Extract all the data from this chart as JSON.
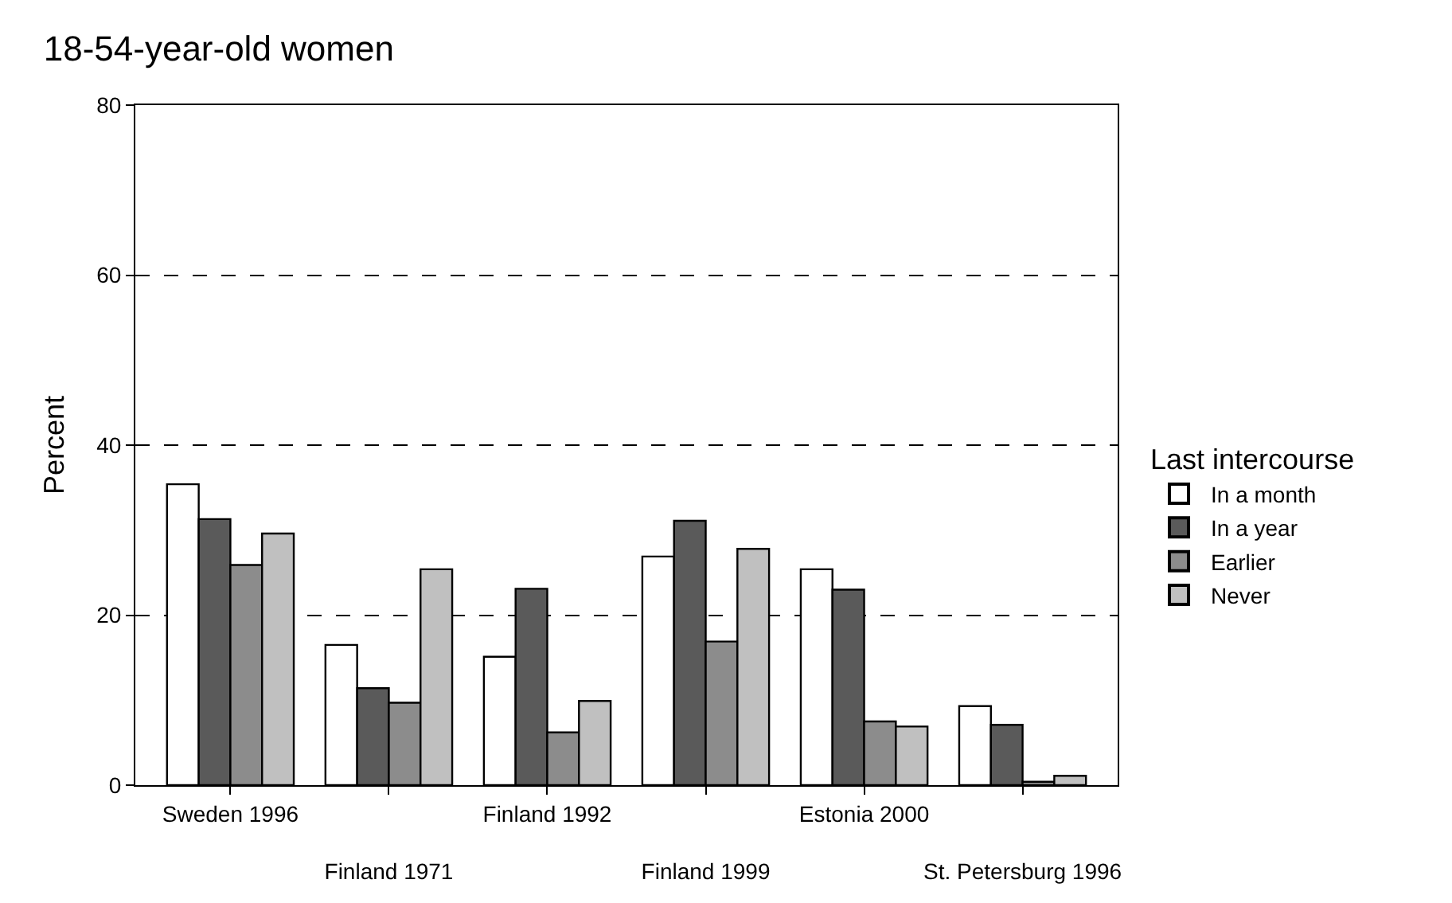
{
  "chart_data": {
    "type": "bar",
    "title": "18-54-year-old women",
    "ylabel": "Percent",
    "legend_title": "Last intercourse",
    "categories": [
      "Sweden 1996",
      "Finland 1971",
      "Finland 1992",
      "Finland 1999",
      "Estonia 2000",
      "St. Petersburg 1996"
    ],
    "series": [
      {
        "name": "In a month",
        "color": "#ffffff",
        "values": [
          35.4,
          16.5,
          15.1,
          26.9,
          25.4,
          9.3
        ]
      },
      {
        "name": "In a year",
        "color": "#5a5a5a",
        "values": [
          31.3,
          11.4,
          23.1,
          31.1,
          23.0,
          7.1
        ]
      },
      {
        "name": "Earlier",
        "color": "#8c8c8c",
        "values": [
          25.9,
          9.7,
          6.2,
          16.9,
          7.5,
          0.4
        ]
      },
      {
        "name": "Never",
        "color": "#c0c0c0",
        "values": [
          29.6,
          25.4,
          9.9,
          27.8,
          6.9,
          1.1
        ]
      }
    ],
    "ylim": [
      0,
      80
    ],
    "yticks": [
      0,
      20,
      40,
      60,
      80
    ],
    "grid": "y",
    "legend": "right"
  }
}
